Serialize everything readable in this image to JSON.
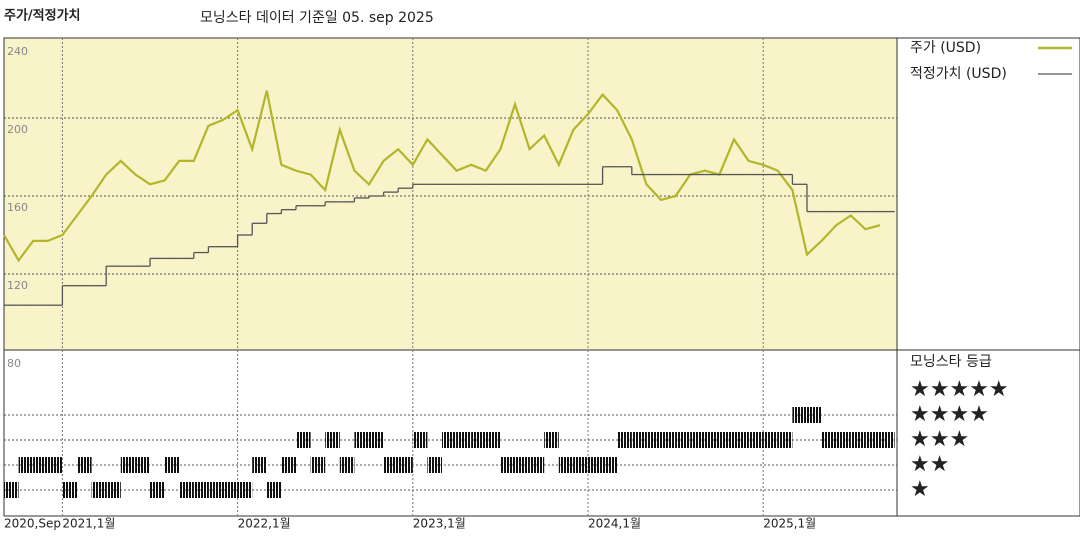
{
  "chart_data": {
    "type": "line",
    "title": "주가/적정가치",
    "subtitle": "모닝스타 데이터 기준일 05. sep 2025",
    "x": [
      "2020-09",
      "2020-10",
      "2020-11",
      "2020-12",
      "2021-01",
      "2021-02",
      "2021-03",
      "2021-04",
      "2021-05",
      "2021-06",
      "2021-07",
      "2021-08",
      "2021-09",
      "2021-10",
      "2021-11",
      "2021-12",
      "2022-01",
      "2022-02",
      "2022-03",
      "2022-04",
      "2022-05",
      "2022-06",
      "2022-07",
      "2022-08",
      "2022-09",
      "2022-10",
      "2022-11",
      "2022-12",
      "2023-01",
      "2023-02",
      "2023-03",
      "2023-04",
      "2023-05",
      "2023-06",
      "2023-07",
      "2023-08",
      "2023-09",
      "2023-10",
      "2023-11",
      "2023-12",
      "2024-01",
      "2024-02",
      "2024-03",
      "2024-04",
      "2024-05",
      "2024-06",
      "2024-07",
      "2024-08",
      "2024-09",
      "2024-10",
      "2024-11",
      "2024-12",
      "2025-01",
      "2025-02",
      "2025-03",
      "2025-04",
      "2025-05",
      "2025-06",
      "2025-07",
      "2025-08",
      "2025-09"
    ],
    "series": [
      {
        "name": "주가 (USD)",
        "color": "#b3b52a",
        "values": [
          140,
          127,
          137,
          137,
          140,
          150,
          160,
          171,
          178,
          171,
          166,
          168,
          178,
          178,
          196,
          199,
          204,
          184,
          214,
          176,
          173,
          171,
          163,
          194,
          173,
          166,
          178,
          184,
          176,
          189,
          181,
          173,
          176,
          173,
          184,
          207,
          184,
          191,
          176,
          194,
          202,
          212,
          204,
          189,
          166,
          158,
          160,
          171,
          173,
          171,
          189,
          178,
          176,
          173,
          163,
          130,
          137,
          145,
          150,
          143,
          145
        ]
      },
      {
        "name": "적정가치 (USD)",
        "color": "#555555",
        "step": true,
        "values": [
          104,
          104,
          104,
          104,
          114,
          114,
          114,
          124,
          124,
          124,
          128,
          128,
          128,
          131,
          134,
          134,
          140,
          146,
          151,
          153,
          155,
          155,
          157,
          157,
          159,
          160,
          162,
          164,
          166,
          166,
          166,
          166,
          166,
          166,
          166,
          166,
          166,
          166,
          166,
          166,
          166,
          175,
          175,
          171,
          171,
          171,
          171,
          171,
          171,
          171,
          171,
          171,
          171,
          171,
          166,
          152,
          152,
          152,
          152,
          152,
          152
        ]
      }
    ],
    "ylim": [
      80,
      240
    ],
    "yticks": [
      80,
      120,
      160,
      200,
      240
    ],
    "grid": true,
    "xticks": [
      {
        "value": "2020-09",
        "label": "2020,Sep"
      },
      {
        "value": "2021-01",
        "label": "2021,1월"
      },
      {
        "value": "2022-01",
        "label": "2022,1월"
      },
      {
        "value": "2023-01",
        "label": "2023,1월"
      },
      {
        "value": "2024-01",
        "label": "2024,1월"
      },
      {
        "value": "2025-01",
        "label": "2025,1월"
      }
    ],
    "ratings": {
      "title": "모닝스타 등급",
      "levels": [
        "★",
        "★★",
        "★★★",
        "★★★★",
        "★★★★★"
      ],
      "values": [
        1,
        2,
        2,
        2,
        1,
        2,
        1,
        1,
        2,
        2,
        1,
        2,
        1,
        1,
        1,
        1,
        1,
        2,
        1,
        2,
        3,
        2,
        3,
        2,
        3,
        3,
        2,
        2,
        3,
        2,
        3,
        3,
        3,
        3,
        2,
        2,
        2,
        3,
        2,
        2,
        2,
        2,
        3,
        3,
        3,
        3,
        3,
        3,
        3,
        3,
        3,
        3,
        3,
        3,
        4,
        4,
        3,
        3,
        3,
        3,
        3
      ]
    }
  }
}
